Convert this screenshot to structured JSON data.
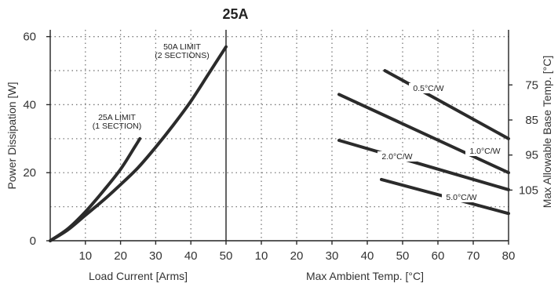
{
  "chart_data": {
    "title": "25A",
    "left_panel": {
      "type": "line",
      "xlabel": "Load Current  [Arms]",
      "ylabel": "Power Dissipation [W]",
      "xlim": [
        0,
        50
      ],
      "ylim": [
        0,
        62
      ],
      "x_ticks": [
        10,
        20,
        30,
        40,
        50
      ],
      "y_ticks": [
        0,
        20,
        40,
        60
      ],
      "grid": true,
      "series": [
        {
          "label": "25A LIMIT\n(1 SECTION)",
          "points": [
            [
              0,
              0
            ],
            [
              5,
              3.5
            ],
            [
              10,
              8.5
            ],
            [
              15,
              14.5
            ],
            [
              20,
              21
            ],
            [
              24,
              27.5
            ],
            [
              25.5,
              30
            ]
          ]
        },
        {
          "label": "50A LIMIT\n(2 SECTIONS)",
          "points": [
            [
              0,
              0
            ],
            [
              5,
              3.2
            ],
            [
              10,
              7.5
            ],
            [
              15,
              11.8
            ],
            [
              20,
              16.5
            ],
            [
              25,
              21.5
            ],
            [
              30,
              27.5
            ],
            [
              35,
              34
            ],
            [
              40,
              41
            ],
            [
              45,
              49
            ],
            [
              50,
              57
            ]
          ]
        }
      ]
    },
    "right_panel": {
      "type": "line",
      "xlabel": "Max Ambient Temp. [°C]",
      "ylabel": "Max Allowable Base Temp. [°C]",
      "xlim": [
        0,
        80
      ],
      "x_ticks": [
        10,
        20,
        30,
        40,
        50,
        60,
        70,
        80
      ],
      "y_ticks": [
        75,
        85,
        95,
        105
      ],
      "grid": true,
      "series": [
        {
          "label": "0.5°C/W",
          "points": [
            [
              45,
              50
            ],
            [
              80,
              30
            ]
          ]
        },
        {
          "label": "1.0°C/W",
          "points": [
            [
              32,
              43
            ],
            [
              80,
              20
            ]
          ]
        },
        {
          "label": "2.0°C/W",
          "points": [
            [
              32,
              29.5
            ],
            [
              80,
              15
            ]
          ]
        },
        {
          "label": "5.0°C/W",
          "points": [
            [
              44,
              18
            ],
            [
              80,
              8
            ]
          ]
        }
      ]
    }
  }
}
